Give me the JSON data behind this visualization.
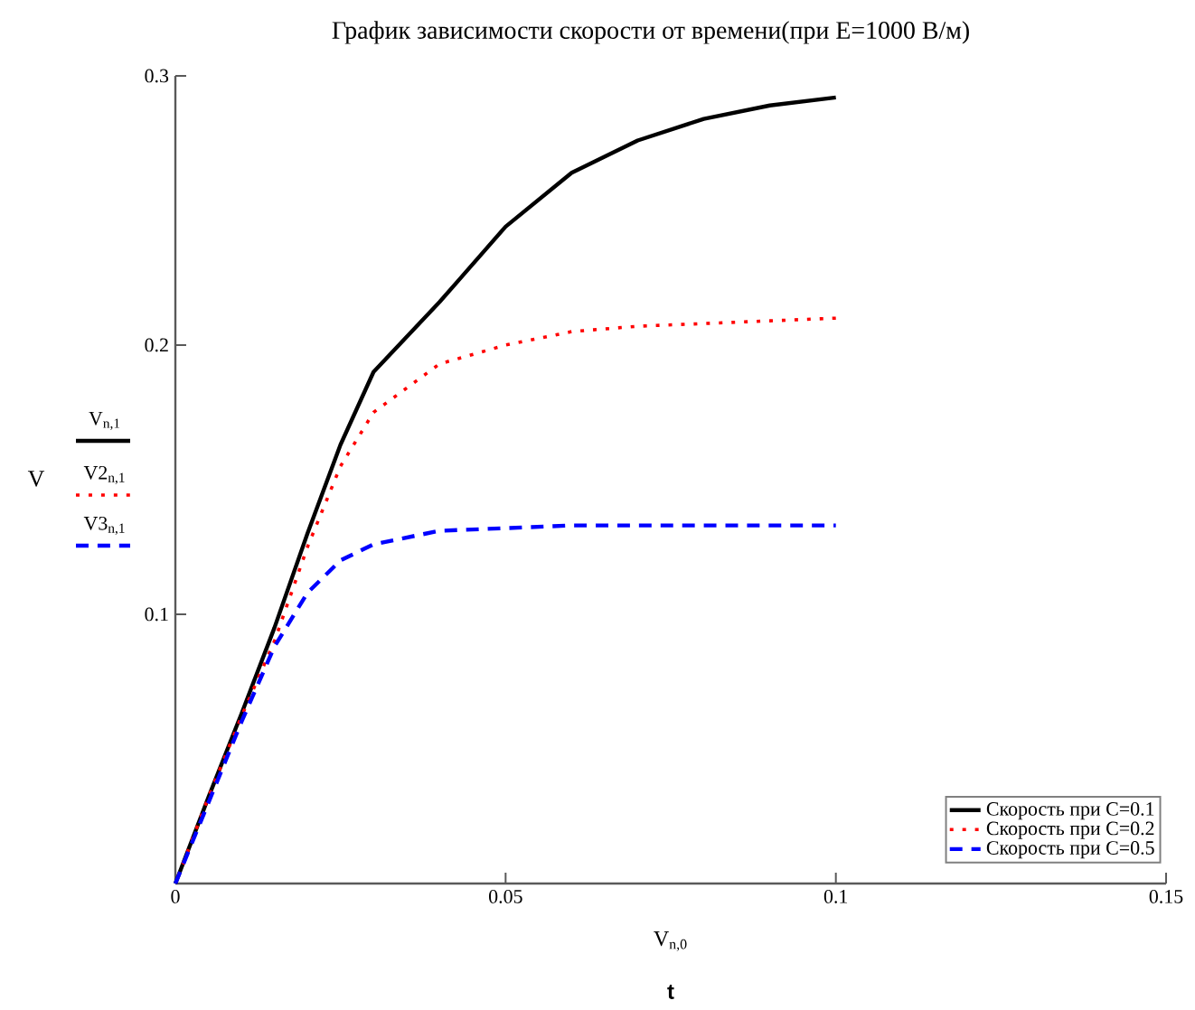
{
  "chart_data": {
    "type": "line",
    "title": "График зависимости скорости от времени(при E=1000 В/м)",
    "xlabel": "V$_{n,0}$",
    "ylabel": "V",
    "annotations": [
      "t",
      "V$_{n,1}$",
      "V2$_{n,1}$",
      "V3$_{n,1}$"
    ],
    "x": [
      0,
      0.005,
      0.01,
      0.015,
      0.02,
      0.025,
      0.03,
      0.04,
      0.05,
      0.06,
      0.07,
      0.08,
      0.09,
      0.1
    ],
    "series": [
      {
        "name": "Скорость при C=0.1",
        "color": "#000000",
        "line_style": "solid",
        "values": [
          0,
          0.032,
          0.063,
          0.095,
          0.13,
          0.163,
          0.19,
          0.216,
          0.244,
          0.264,
          0.276,
          0.284,
          0.289,
          0.292
        ]
      },
      {
        "name": "Скорость при C=0.2",
        "color": "#ff0000",
        "line_style": "dotted",
        "values": [
          0,
          0.032,
          0.062,
          0.09,
          0.125,
          0.155,
          0.175,
          0.193,
          0.2,
          0.205,
          0.207,
          0.208,
          0.209,
          0.21
        ]
      },
      {
        "name": "Скорость при C=0.5",
        "color": "#0000ff",
        "line_style": "dashed",
        "values": [
          0,
          0.03,
          0.06,
          0.088,
          0.108,
          0.12,
          0.126,
          0.131,
          0.132,
          0.133,
          0.133,
          0.133,
          0.133,
          0.133
        ]
      }
    ],
    "xlim": [
      0,
      0.15
    ],
    "ylim": [
      0,
      0.3
    ],
    "xticks": [
      0,
      0.05,
      0.1,
      0.15
    ],
    "yticks": [
      {
        "value": 0,
        "label": null
      },
      0.1,
      0.2,
      0.3
    ],
    "grid": false,
    "legend": "bottom right"
  }
}
